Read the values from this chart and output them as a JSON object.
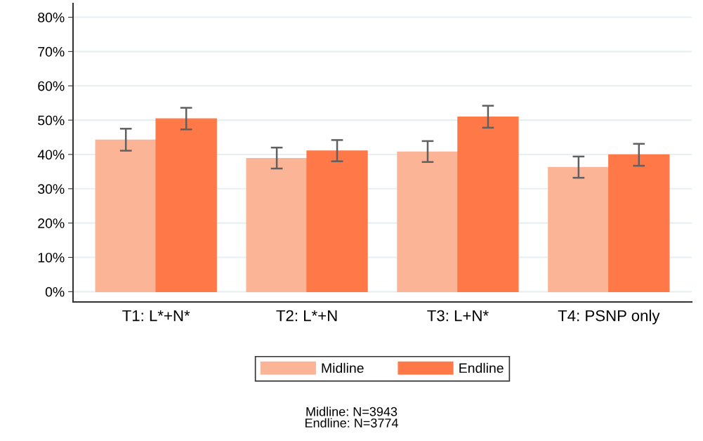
{
  "chart_data": {
    "type": "bar",
    "categories": [
      "T1: L*+N*",
      "T2: L*+N",
      "T3: L+N*",
      "T4: PSNP only"
    ],
    "series": [
      {
        "name": "Midline",
        "color": "#fbb496",
        "values": [
          44.2,
          38.8,
          40.7,
          36.2
        ],
        "errors": [
          [
            41.1,
            47.5
          ],
          [
            35.9,
            42.0
          ],
          [
            37.8,
            43.9
          ],
          [
            33.2,
            39.4
          ]
        ]
      },
      {
        "name": "Endline",
        "color": "#fe7848",
        "values": [
          50.4,
          41.0,
          50.9,
          39.9
        ],
        "errors": [
          [
            47.3,
            53.6
          ],
          [
            38.0,
            44.2
          ],
          [
            47.8,
            54.2
          ],
          [
            36.7,
            43.1
          ]
        ]
      }
    ],
    "ylim": [
      -3,
      84
    ],
    "yticks": [
      {
        "value": 0,
        "label": "0%"
      },
      {
        "value": 10,
        "label": "10%"
      },
      {
        "value": 20,
        "label": "20%"
      },
      {
        "value": 30,
        "label": "30%"
      },
      {
        "value": 40,
        "label": "40%"
      },
      {
        "value": 50,
        "label": "50%"
      },
      {
        "value": 60,
        "label": "60%"
      },
      {
        "value": 70,
        "label": "70%"
      },
      {
        "value": 80,
        "label": "80%"
      }
    ],
    "grid": "y",
    "legend": "bottom",
    "annotations": [
      "Midline: N=3943\nEndline: N=3774"
    ]
  }
}
